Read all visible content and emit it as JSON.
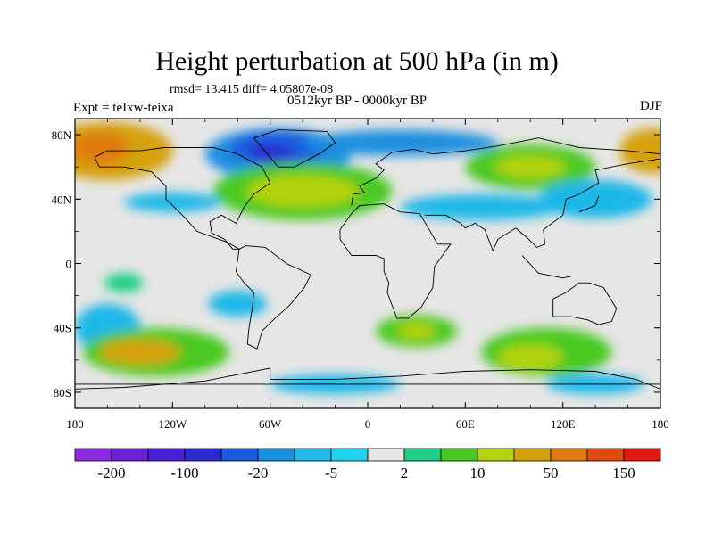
{
  "title": "Height perturbation at 500 hPa (in m)",
  "stats": "rmsd= 13.415 diff= 4.05807e-08",
  "expt_label": "Expt = teIxw-teixa",
  "period": "0512kyr BP - 0000kyr BP",
  "season": "DJF",
  "map": {
    "projection": "cylindrical equidistant",
    "lon_range": [
      -180,
      180
    ],
    "lat_range": [
      -90,
      90
    ],
    "x_ticks": [
      {
        "lon": -180,
        "label": "180"
      },
      {
        "lon": -120,
        "label": "120W"
      },
      {
        "lon": -60,
        "label": "60W"
      },
      {
        "lon": 0,
        "label": "0"
      },
      {
        "lon": 60,
        "label": "60E"
      },
      {
        "lon": 120,
        "label": "120E"
      },
      {
        "lon": 180,
        "label": "180"
      }
    ],
    "y_ticks": [
      {
        "lat": 80,
        "label": "80N"
      },
      {
        "lat": 40,
        "label": "40N"
      },
      {
        "lat": 0,
        "label": "0"
      },
      {
        "lat": -40,
        "label": "40S"
      },
      {
        "lat": -80,
        "label": "80S"
      }
    ],
    "field_blobs": [
      {
        "lon": -160,
        "lat": 70,
        "rlon": 40,
        "rlat": 18,
        "color": "#d5a10a"
      },
      {
        "lon": -165,
        "lat": 72,
        "rlon": 18,
        "rlat": 10,
        "color": "#e07a0e"
      },
      {
        "lon": 175,
        "lat": 70,
        "rlon": 20,
        "rlat": 14,
        "color": "#d5a10a"
      },
      {
        "lon": -55,
        "lat": 68,
        "rlon": 45,
        "rlat": 16,
        "color": "#1a8fe0"
      },
      {
        "lon": -55,
        "lat": 72,
        "rlon": 30,
        "rlat": 10,
        "color": "#1a5ae0"
      },
      {
        "lon": -60,
        "lat": 68,
        "rlon": 14,
        "rlat": 6,
        "color": "#2a2ad0"
      },
      {
        "lon": 20,
        "lat": 75,
        "rlon": 60,
        "rlat": 8,
        "color": "#1a8fe0"
      },
      {
        "lon": -40,
        "lat": 45,
        "rlon": 55,
        "rlat": 18,
        "color": "#48c920"
      },
      {
        "lon": -40,
        "lat": 45,
        "rlon": 35,
        "rlat": 10,
        "color": "#b4d20e"
      },
      {
        "lon": 100,
        "lat": 60,
        "rlon": 40,
        "rlat": 14,
        "color": "#48c920"
      },
      {
        "lon": 100,
        "lat": 60,
        "rlon": 22,
        "rlat": 7,
        "color": "#b4d20e"
      },
      {
        "lon": 70,
        "lat": 35,
        "rlon": 50,
        "rlat": 8,
        "color": "#1fb8e8"
      },
      {
        "lon": -120,
        "lat": 38,
        "rlon": 30,
        "rlat": 6,
        "color": "#1fb8e8"
      },
      {
        "lon": 140,
        "lat": 40,
        "rlon": 35,
        "rlat": 12,
        "color": "#1fb8e8"
      },
      {
        "lon": -160,
        "lat": -40,
        "rlon": 20,
        "rlat": 15,
        "color": "#1fb8e8"
      },
      {
        "lon": -130,
        "lat": -55,
        "rlon": 45,
        "rlat": 15,
        "color": "#48c920"
      },
      {
        "lon": -140,
        "lat": -55,
        "rlon": 25,
        "rlat": 8,
        "color": "#d5a10a"
      },
      {
        "lon": 30,
        "lat": -42,
        "rlon": 25,
        "rlat": 10,
        "color": "#48c920"
      },
      {
        "lon": 30,
        "lat": -42,
        "rlon": 12,
        "rlat": 5,
        "color": "#b4d20e"
      },
      {
        "lon": 110,
        "lat": -55,
        "rlon": 40,
        "rlat": 15,
        "color": "#48c920"
      },
      {
        "lon": 100,
        "lat": -58,
        "rlon": 20,
        "rlat": 8,
        "color": "#b4d20e"
      },
      {
        "lon": -20,
        "lat": -75,
        "rlon": 40,
        "rlat": 6,
        "color": "#1fb8e8"
      },
      {
        "lon": 140,
        "lat": -75,
        "rlon": 30,
        "rlat": 6,
        "color": "#1fb8e8"
      },
      {
        "lon": -80,
        "lat": -25,
        "rlon": 18,
        "rlat": 8,
        "color": "#1fb8e8"
      },
      {
        "lon": -150,
        "lat": -12,
        "rlon": 12,
        "rlat": 6,
        "color": "#1fcf86"
      }
    ]
  },
  "colorbar": {
    "colors": [
      "#8a2be2",
      "#6a1fd8",
      "#4b1fd8",
      "#2a2ad0",
      "#1a5ae0",
      "#1a8fe0",
      "#1fb8e8",
      "#1fd3f0",
      "#e6e6e6",
      "#1fcf86",
      "#48c920",
      "#b4d20e",
      "#d5a10a",
      "#e07a0e",
      "#e04a0e",
      "#e01a0e"
    ],
    "labels": [
      {
        "boundary": 1,
        "text": "-200"
      },
      {
        "boundary": 3,
        "text": "-100"
      },
      {
        "boundary": 5,
        "text": "-20"
      },
      {
        "boundary": 7,
        "text": "-5"
      },
      {
        "boundary": 9,
        "text": "2"
      },
      {
        "boundary": 11,
        "text": "10"
      },
      {
        "boundary": 13,
        "text": "50"
      },
      {
        "boundary": 15,
        "text": "150"
      }
    ]
  }
}
